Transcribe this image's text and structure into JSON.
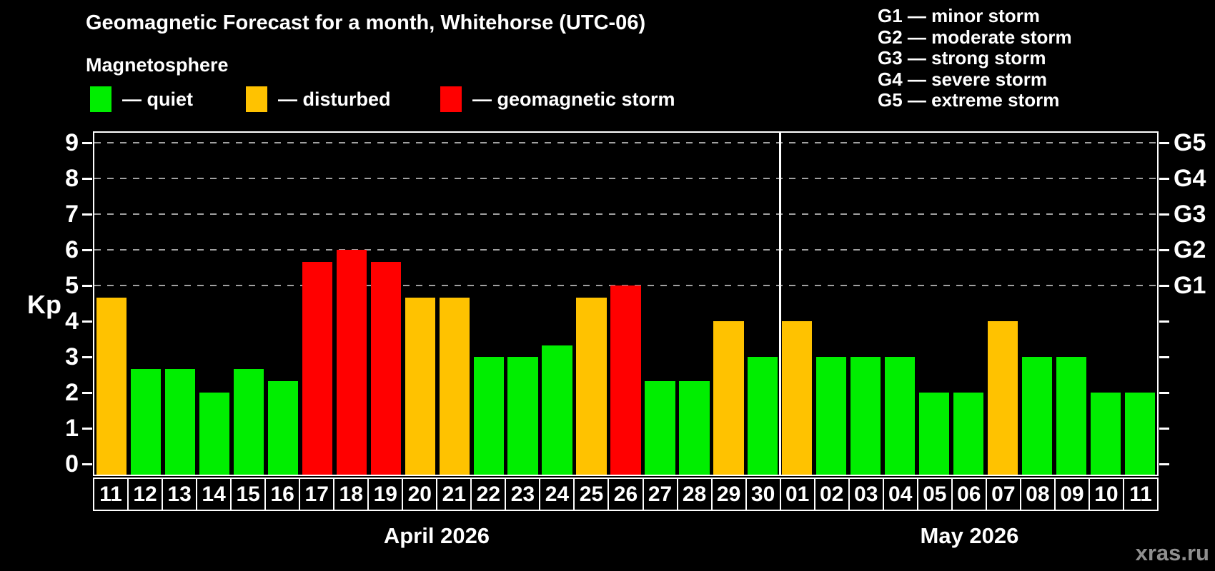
{
  "title": "Geomagnetic Forecast for a month, Whitehorse (UTC-06)",
  "subtitle": "Magnetosphere",
  "kp_axis_label": "Kp",
  "watermark": "xras.ru",
  "colors": {
    "quiet": "#00EE00",
    "disturbed": "#FFC200",
    "storm": "#FF0000",
    "background": "#000000",
    "grid": "#A0A0A0",
    "axis": "#FFFFFF",
    "watermark": "#8F8F8F"
  },
  "legend": [
    {
      "swatch": "quiet",
      "label": "— quiet"
    },
    {
      "swatch": "disturbed",
      "label": "— disturbed"
    },
    {
      "swatch": "storm",
      "label": "— geomagnetic storm"
    }
  ],
  "g_scale_legend": [
    "G1 — minor storm",
    "G2 — moderate storm",
    "G3 — strong storm",
    "G4 — severe storm",
    "G5 — extreme storm"
  ],
  "chart_data": {
    "type": "bar",
    "ylabel": "Kp",
    "ylim": [
      0,
      9
    ],
    "yticks": [
      0,
      1,
      2,
      3,
      4,
      5,
      6,
      7,
      8,
      9
    ],
    "right_ticks": [
      {
        "kp": 5,
        "label": "G1"
      },
      {
        "kp": 6,
        "label": "G2"
      },
      {
        "kp": 7,
        "label": "G3"
      },
      {
        "kp": 8,
        "label": "G4"
      },
      {
        "kp": 9,
        "label": "G5"
      }
    ],
    "gridlines_at": [
      5,
      6,
      7,
      8,
      9
    ],
    "grid": "dashed-horizontal",
    "legend_position": "top-left",
    "months": [
      {
        "label": "April 2026",
        "days": [
          {
            "day": "11",
            "kp": 4.67,
            "status": "disturbed"
          },
          {
            "day": "12",
            "kp": 2.67,
            "status": "quiet"
          },
          {
            "day": "13",
            "kp": 2.67,
            "status": "quiet"
          },
          {
            "day": "14",
            "kp": 2.0,
            "status": "quiet"
          },
          {
            "day": "15",
            "kp": 2.67,
            "status": "quiet"
          },
          {
            "day": "16",
            "kp": 2.33,
            "status": "quiet"
          },
          {
            "day": "17",
            "kp": 5.67,
            "status": "storm"
          },
          {
            "day": "18",
            "kp": 6.0,
            "status": "storm"
          },
          {
            "day": "19",
            "kp": 5.67,
            "status": "storm"
          },
          {
            "day": "20",
            "kp": 4.67,
            "status": "disturbed"
          },
          {
            "day": "21",
            "kp": 4.67,
            "status": "disturbed"
          },
          {
            "day": "22",
            "kp": 3.0,
            "status": "quiet"
          },
          {
            "day": "23",
            "kp": 3.0,
            "status": "quiet"
          },
          {
            "day": "24",
            "kp": 3.33,
            "status": "quiet"
          },
          {
            "day": "25",
            "kp": 4.67,
            "status": "disturbed"
          },
          {
            "day": "26",
            "kp": 5.0,
            "status": "storm"
          },
          {
            "day": "27",
            "kp": 2.33,
            "status": "quiet"
          },
          {
            "day": "28",
            "kp": 2.33,
            "status": "quiet"
          },
          {
            "day": "29",
            "kp": 4.0,
            "status": "disturbed"
          },
          {
            "day": "30",
            "kp": 3.0,
            "status": "quiet"
          }
        ]
      },
      {
        "label": "May 2026",
        "days": [
          {
            "day": "01",
            "kp": 4.0,
            "status": "disturbed"
          },
          {
            "day": "02",
            "kp": 3.0,
            "status": "quiet"
          },
          {
            "day": "03",
            "kp": 3.0,
            "status": "quiet"
          },
          {
            "day": "04",
            "kp": 3.0,
            "status": "quiet"
          },
          {
            "day": "05",
            "kp": 2.0,
            "status": "quiet"
          },
          {
            "day": "06",
            "kp": 2.0,
            "status": "quiet"
          },
          {
            "day": "07",
            "kp": 4.0,
            "status": "disturbed"
          },
          {
            "day": "08",
            "kp": 3.0,
            "status": "quiet"
          },
          {
            "day": "09",
            "kp": 3.0,
            "status": "quiet"
          },
          {
            "day": "10",
            "kp": 2.0,
            "status": "quiet"
          },
          {
            "day": "11",
            "kp": 2.0,
            "status": "quiet"
          }
        ]
      }
    ]
  }
}
